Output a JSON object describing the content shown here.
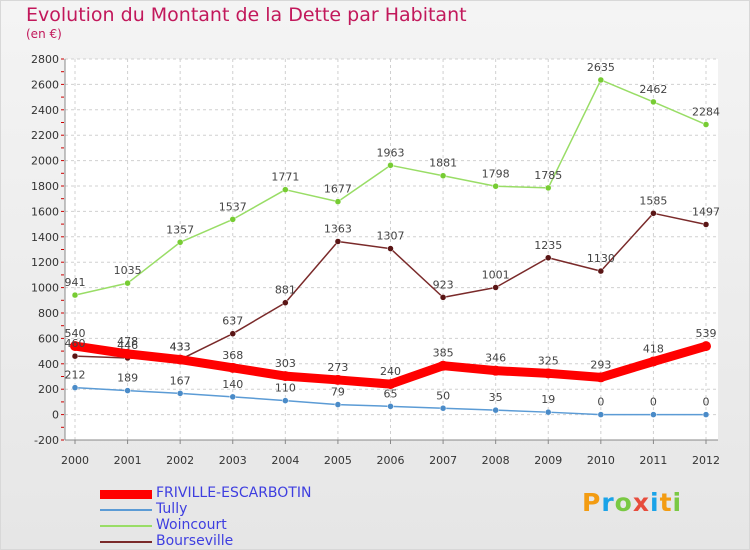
{
  "title": "Evolution du Montant de la Dette par Habitant",
  "subtitle": "(en €)",
  "logo_text": "Proxiti",
  "chart_data": {
    "type": "line",
    "categories": [
      "2000",
      "2001",
      "2002",
      "2003",
      "2004",
      "2005",
      "2006",
      "2007",
      "2008",
      "2009",
      "2010",
      "2011",
      "2012"
    ],
    "ylim": [
      -200,
      2800
    ],
    "yticks": [
      -200,
      0,
      200,
      400,
      600,
      800,
      1000,
      1200,
      1400,
      1600,
      1800,
      2000,
      2200,
      2400,
      2600,
      2800
    ],
    "grid": true,
    "legend_position": "bottom-left",
    "series": [
      {
        "name": "Tully",
        "color": "#5b9bd5",
        "marker": "#4a8bc8",
        "values": [
          212,
          189,
          167,
          140,
          110,
          79,
          65,
          50,
          35,
          19,
          0,
          0,
          0
        ]
      },
      {
        "name": "Woincourt",
        "color": "#99dd66",
        "marker": "#77cc33",
        "values": [
          941,
          1035,
          1357,
          1537,
          1771,
          1677,
          1963,
          1881,
          1798,
          1785,
          2635,
          2462,
          2284
        ]
      },
      {
        "name": "Bourseville",
        "color": "#7a2a2a",
        "marker": "#5a1515",
        "values": [
          460,
          446,
          433,
          637,
          881,
          1363,
          1307,
          923,
          1001,
          1235,
          1130,
          1585,
          1497
        ]
      },
      {
        "name": "FRIVILLE-ESCARBOTIN",
        "color": "#ff0000",
        "marker": "#ff0000",
        "values": [
          540,
          478,
          433,
          368,
          303,
          273,
          240,
          385,
          346,
          325,
          293,
          418,
          539
        ],
        "bold": true
      }
    ],
    "legend_order": [
      "FRIVILLE-ESCARBOTIN",
      "Tully",
      "Woincourt",
      "Bourseville"
    ]
  }
}
